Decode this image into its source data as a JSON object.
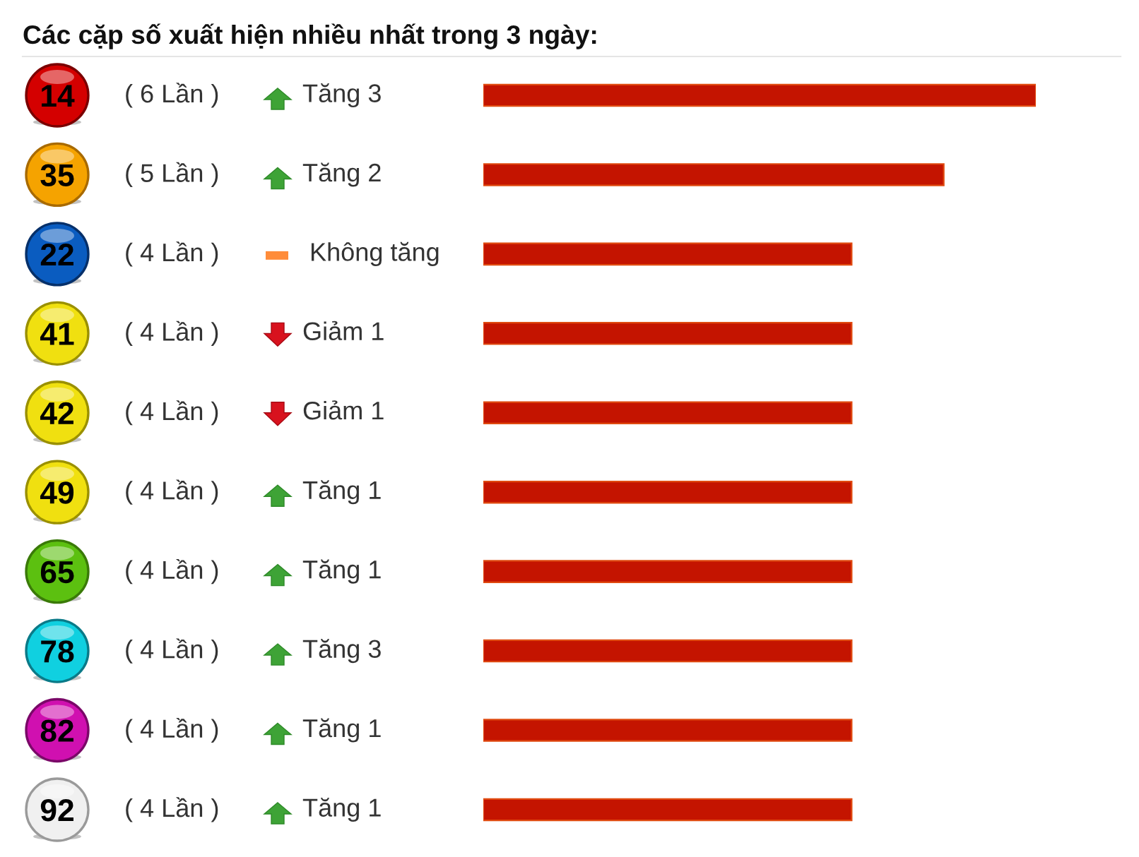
{
  "chart_data": {
    "type": "bar",
    "orientation": "horizontal",
    "title": "Các cặp số xuất hiện nhiều nhất trong 3 ngày:",
    "categories": [
      "14",
      "35",
      "22",
      "41",
      "42",
      "49",
      "65",
      "78",
      "82",
      "92"
    ],
    "values": [
      6,
      5,
      4,
      4,
      4,
      4,
      4,
      4,
      4,
      4
    ],
    "value_labels": [
      "( 6 Lần )",
      "( 5 Lần )",
      "( 4 Lần )",
      "( 4 Lần )",
      "( 4 Lần )",
      "( 4 Lần )",
      "( 4 Lần )",
      "( 4 Lần )",
      "( 4 Lần )",
      "( 4 Lần )"
    ],
    "color": "#c41400",
    "annotations": [
      "Tăng 3",
      "Tăng 2",
      "Không tăng",
      "Giảm 1",
      "Giảm 1",
      "Tăng 1",
      "Tăng 1",
      "Tăng 3",
      "Tăng 1",
      "Tăng 1"
    ],
    "tick_labels": "y"
  }
}
